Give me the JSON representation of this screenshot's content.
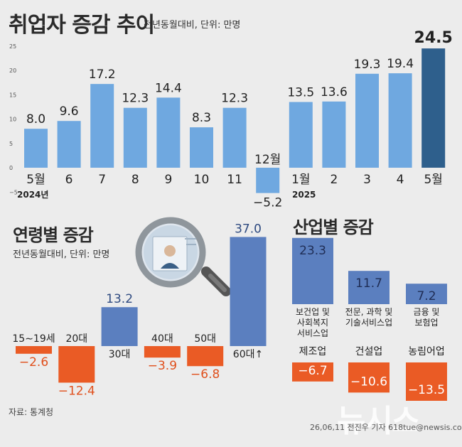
{
  "main": {
    "title": "취업자 증감 추이",
    "subtitle": "전년동월대비, 단위: 만명"
  },
  "age": {
    "title": "연령별 증감",
    "subtitle": "전년동월대비, 단위: 만명"
  },
  "industry": {
    "title": "산업별 증감"
  },
  "footer": {
    "source": "자료: 통계청",
    "credit": "26,06,11 전진우 기자 618tue@newsis.com",
    "watermark": "뉴시스"
  },
  "colors": {
    "background": "#ececec",
    "bar_light": "#6fa8e0",
    "bar_highlight": "#2e5f8c",
    "bar_mid": "#5b7fbf",
    "bar_negative": "#ea5b25"
  },
  "chart_data": [
    {
      "type": "bar",
      "title": "취업자 증감 추이",
      "categories": [
        "5월",
        "6",
        "7",
        "8",
        "9",
        "10",
        "11",
        "12월",
        "1월",
        "2",
        "3",
        "4",
        "5월"
      ],
      "year_labels": [
        "2024년",
        "2025"
      ],
      "values": [
        8.0,
        9.6,
        17.2,
        12.3,
        14.4,
        8.3,
        12.3,
        -5.2,
        13.5,
        13.6,
        19.3,
        19.4,
        24.5
      ],
      "value_labels": [
        "8.0",
        "9.6",
        "17.2",
        "12.3",
        "14.4",
        "8.3",
        "12.3",
        "−5.2",
        "13.5",
        "13.6",
        "19.3",
        "19.4",
        "24.5"
      ],
      "highlight_index": 12,
      "y_ticks": [
        25,
        20,
        15,
        10,
        5,
        0,
        -5
      ],
      "ylim": [
        -5,
        25
      ],
      "grid": false
    },
    {
      "type": "bar",
      "title": "연령별 증감",
      "categories": [
        "15∼19세",
        "20대",
        "30대",
        "40대",
        "50대",
        "60대↑"
      ],
      "values": [
        -2.6,
        -12.4,
        13.2,
        -3.9,
        -6.8,
        37.0
      ],
      "value_labels": [
        "−2.6",
        "−12.4",
        "13.2",
        "−3.9",
        "−6.8",
        "37.0"
      ]
    },
    {
      "type": "bar",
      "title": "산업별 증감",
      "categories": [
        "보건업 및\n사회복지\n서비스업",
        "전문, 과학 및\n기술서비스업",
        "금융 및\n보험업",
        "제조업",
        "건설업",
        "농림어업"
      ],
      "values": [
        23.3,
        11.7,
        7.2,
        -6.7,
        -10.6,
        -13.5
      ],
      "value_labels": [
        "23.3",
        "11.7",
        "7.2",
        "−6.7",
        "−10.6",
        "−13.5"
      ]
    }
  ]
}
